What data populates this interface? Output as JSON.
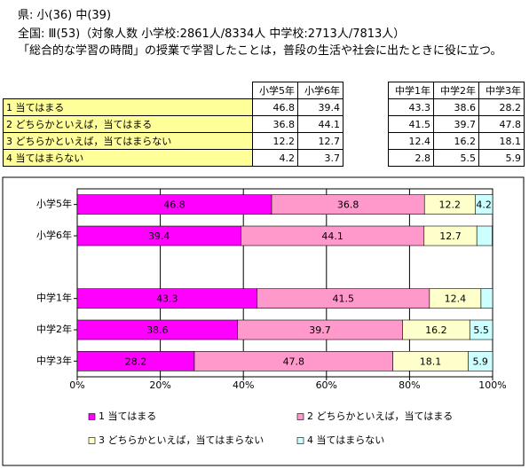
{
  "header": {
    "line1": "県: 小(36)  中(39)",
    "line2": "全国: Ⅲ(53)（対象人数  小学校:2861人/8334人  中学校:2713人/7813人）",
    "question": "「総合的な学習の時間」の授業で学習したことは，普段の生活や社会に出たときに役に立つ。"
  },
  "chart_data": {
    "type": "stacked-barh",
    "categories": [
      "小学5年",
      "小学6年",
      null,
      "中学1年",
      "中学2年",
      "中学3年"
    ],
    "series": [
      {
        "name": "1  当てはまる",
        "color": "#ff00ff",
        "values": [
          46.8,
          39.4,
          null,
          43.3,
          38.6,
          28.2
        ]
      },
      {
        "name": "2  どちらかといえば，当てはまる",
        "color": "#ff99cc",
        "values": [
          36.8,
          44.1,
          null,
          41.5,
          39.7,
          47.8
        ]
      },
      {
        "name": "3  どちらかといえば，当てはまらない",
        "color": "#ffffcc",
        "values": [
          12.2,
          12.7,
          null,
          12.4,
          16.2,
          18.1
        ]
      },
      {
        "name": "4  当てはまらない",
        "color": "#ccffff",
        "values": [
          4.2,
          3.7,
          null,
          2.8,
          5.5,
          5.9
        ]
      }
    ],
    "xlim": [
      0,
      100
    ],
    "xticks": [
      {
        "value": 0,
        "label": "0%"
      },
      {
        "value": 20,
        "label": "20%"
      },
      {
        "value": 40,
        "label": "40%"
      },
      {
        "value": 60,
        "label": "60%"
      },
      {
        "value": 80,
        "label": "80%"
      },
      {
        "value": 100,
        "label": "100%"
      }
    ],
    "grid": true,
    "legend": "bottom"
  }
}
